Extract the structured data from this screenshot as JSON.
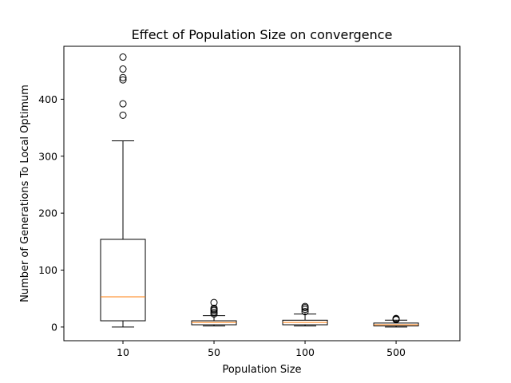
{
  "chart_data": {
    "type": "box",
    "title": "Effect of Population Size on convergence",
    "xlabel": "Population Size",
    "ylabel": "Number of Generations To Local Optimum",
    "ylim": [
      -24,
      493
    ],
    "yticks": [
      0,
      100,
      200,
      300,
      400
    ],
    "categories": [
      "10",
      "50",
      "100",
      "500"
    ],
    "boxes": [
      {
        "category": "10",
        "whislo": 0,
        "q1": 11,
        "median": 53,
        "q3": 154,
        "whishi": 327,
        "fliers": [
          372,
          392,
          434,
          438,
          453,
          474
        ]
      },
      {
        "category": "50",
        "whislo": 2,
        "q1": 4,
        "median": 8,
        "q3": 11,
        "whishi": 20,
        "fliers": [
          23,
          26,
          29,
          31,
          33,
          43
        ]
      },
      {
        "category": "100",
        "whislo": 2,
        "q1": 4,
        "median": 8,
        "q3": 12,
        "whishi": 23,
        "fliers": [
          27,
          31,
          34,
          36
        ]
      },
      {
        "category": "500",
        "whislo": 0,
        "q1": 2,
        "median": 4,
        "q3": 7,
        "whishi": 12,
        "fliers": [
          13,
          14,
          15
        ]
      }
    ],
    "grid": false,
    "legend": "none",
    "colors": {
      "box": "#000000",
      "median": "#ff7f0e",
      "flier_edge": "#000000",
      "background": "#ffffff"
    }
  }
}
